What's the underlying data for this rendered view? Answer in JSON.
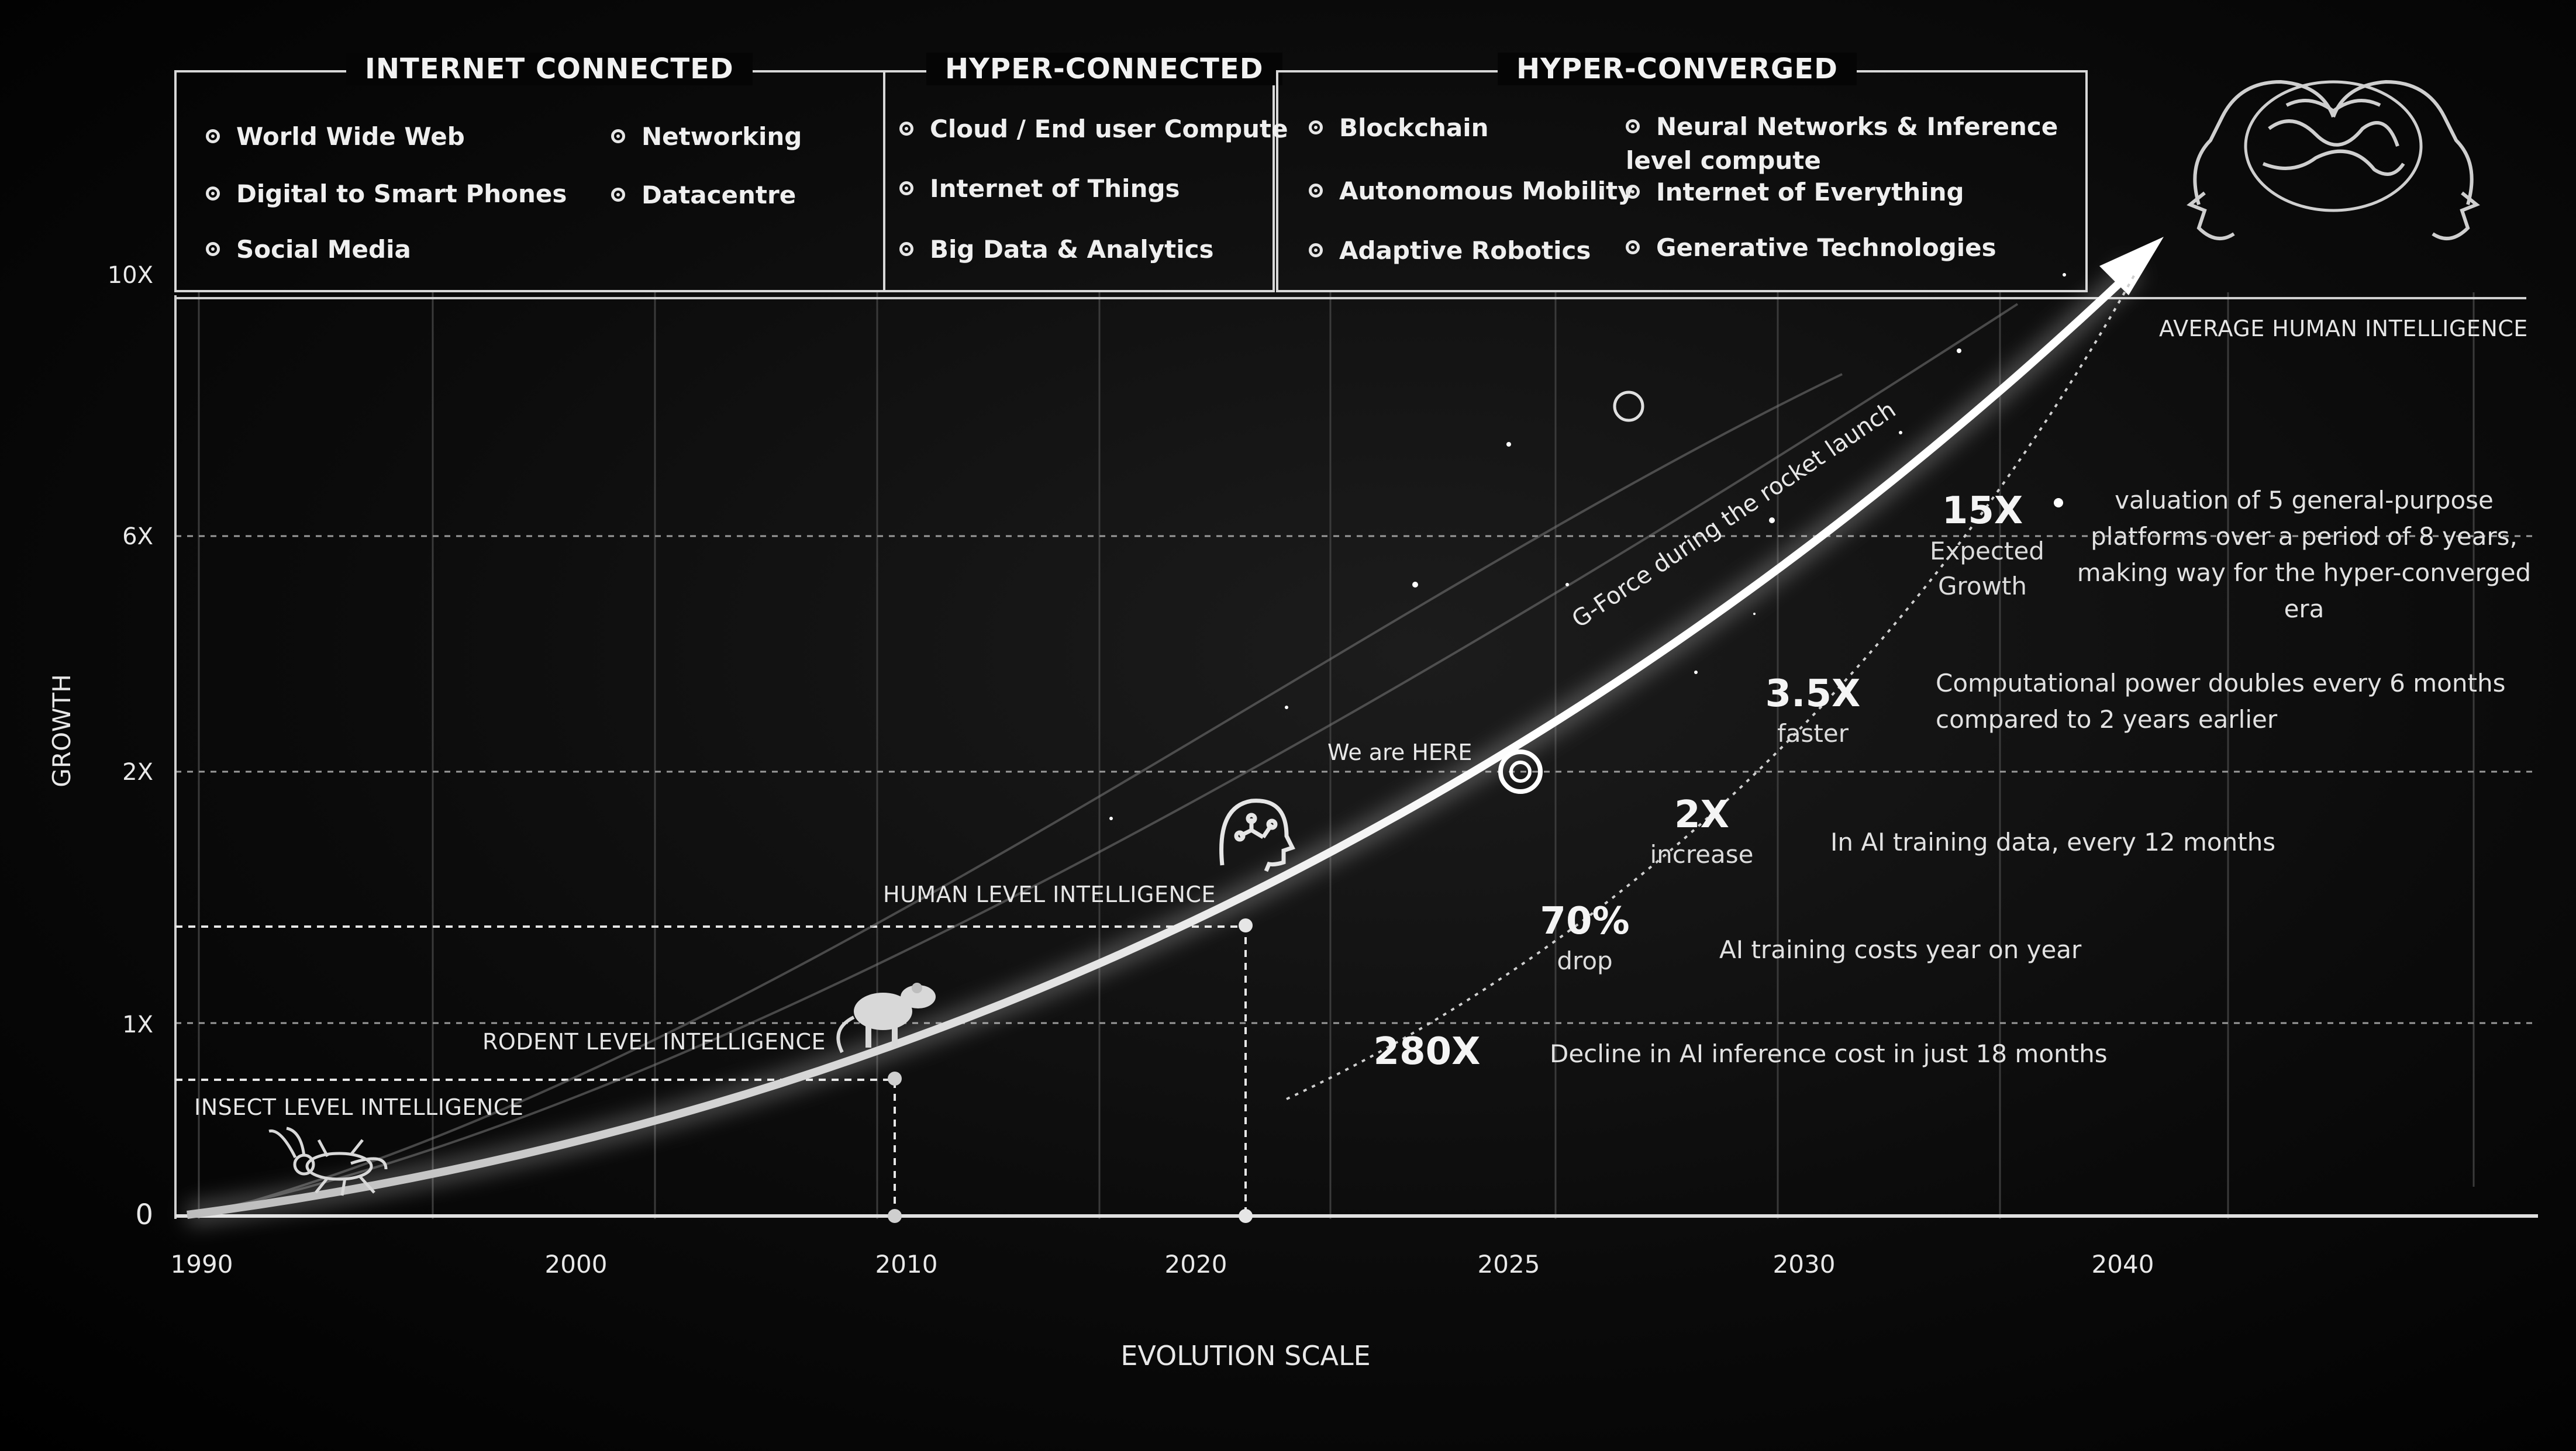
{
  "eras": [
    {
      "title": "INTERNET CONNECTED",
      "items": [
        "World Wide Web",
        "Networking",
        "Digital to Smart Phones",
        "Datacentre",
        "Social Media"
      ]
    },
    {
      "title": "HYPER-CONNECTED",
      "items": [
        "Cloud / End user Compute",
        "Internet of Things",
        "Big Data & Analytics"
      ]
    },
    {
      "title": "HYPER-CONVERGED",
      "items": [
        "Blockchain",
        "Neural Networks & Inference level compute",
        "Autonomous Mobility",
        "Internet of Everything",
        "Adaptive Robotics",
        "Generative Technologies"
      ]
    }
  ],
  "chart_data": {
    "type": "line",
    "xlabel": "EVOLUTION SCALE",
    "ylabel": "GROWTH",
    "x_ticks": [
      "1990",
      "2000",
      "2010",
      "2020",
      "2025",
      "2030",
      "2040"
    ],
    "y_ticks": [
      "0",
      "1X",
      "2X",
      "6X",
      "10X"
    ],
    "curve_label": "G-Force during the rocket launch",
    "current_marker": "We are HERE",
    "intelligence_levels": [
      {
        "label": "INSECT LEVEL INTELLIGENCE",
        "icon": "insect-icon"
      },
      {
        "label": "RODENT LEVEL INTELLIGENCE",
        "icon": "rodent-icon"
      },
      {
        "label": "HUMAN LEVEL INTELLIGENCE",
        "icon": "human-head-brain-icon"
      },
      {
        "label": "AVERAGE HUMAN INTELLIGENCE",
        "icon": "brain-faces-icon"
      }
    ],
    "metrics": [
      {
        "value": "15X",
        "caption": "Expected Growth",
        "description": "valuation of 5 general-purpose platforms over a period of 8 years, making way for the hyper-converged era"
      },
      {
        "value": "3.5X",
        "caption": "faster",
        "description": "Computational power doubles every 6 months compared to 2 years earlier"
      },
      {
        "value": "2X",
        "caption": "increase",
        "description": "In AI training data, every 12 months"
      },
      {
        "value": "70%",
        "caption": "drop",
        "description": "AI training costs year on year"
      },
      {
        "value": "280X",
        "caption": "",
        "description": "Decline in AI inference cost in just 18 months"
      }
    ]
  },
  "colors": {
    "background": "#000000",
    "foreground": "#e8e8e8",
    "curve": "#ffffff"
  }
}
